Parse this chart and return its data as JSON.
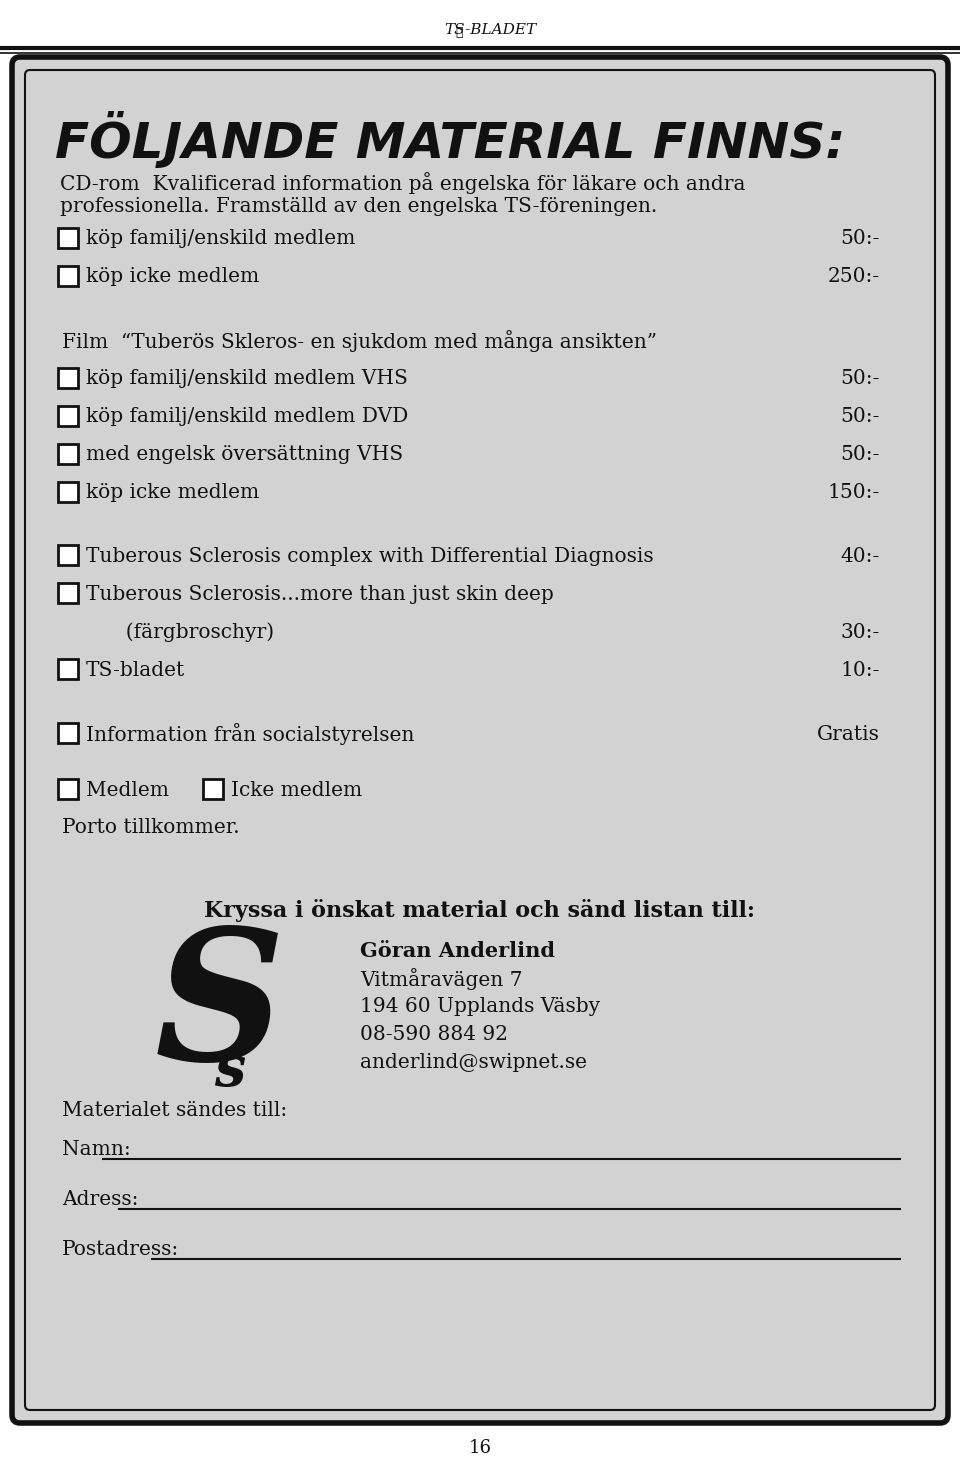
{
  "page_bg": "#ffffff",
  "box_bg": "#d2d2d2",
  "box_border": "#111111",
  "text_color": "#111111",
  "header_text": "FÖLJANDE MATERIAL FINNS:",
  "header_fontsize": 36,
  "body_fontsize": 14.5,
  "title_text": "TS-BLADET",
  "page_number": "16",
  "intro_line1": "CD-rom  Kvalificerad information på engelska för läkare och andra",
  "intro_line2": "professionella. Framställd av den engelska TS-föreningen.",
  "items": [
    {
      "checkbox": true,
      "text": "köp familj/enskild medlem",
      "price": "50:-",
      "extra_before": 0
    },
    {
      "checkbox": true,
      "text": "köp icke medlem",
      "price": "250:-",
      "extra_before": 0
    },
    {
      "checkbox": false,
      "text": "",
      "price": "",
      "extra_before": 20
    },
    {
      "checkbox": false,
      "text": "Film  “Tuberös Skleros- en sjukdom med många ansikten”",
      "price": "",
      "extra_before": 0
    },
    {
      "checkbox": true,
      "text": "köp familj/enskild medlem VHS",
      "price": "50:-",
      "extra_before": 0
    },
    {
      "checkbox": true,
      "text": "köp familj/enskild medlem DVD",
      "price": "50:-",
      "extra_before": 0
    },
    {
      "checkbox": true,
      "text": "med engelsk översättning VHS",
      "price": "50:-",
      "extra_before": 0
    },
    {
      "checkbox": true,
      "text": "köp icke medlem",
      "price": "150:-",
      "extra_before": 0
    },
    {
      "checkbox": false,
      "text": "",
      "price": "",
      "extra_before": 20
    },
    {
      "checkbox": true,
      "text": "Tuberous Sclerosis complex with Differential Diagnosis",
      "price": "40:-",
      "extra_before": 0
    },
    {
      "checkbox": true,
      "text": "Tuberous Sclerosis...more than just skin deep",
      "price": "",
      "extra_before": 0
    },
    {
      "checkbox": false,
      "text": "          (färgbroschyr)",
      "price": "30:-",
      "extra_before": 0
    },
    {
      "checkbox": true,
      "text": "TS-bladet",
      "price": "10:-",
      "extra_before": 0
    },
    {
      "checkbox": false,
      "text": "",
      "price": "",
      "extra_before": 20
    },
    {
      "checkbox": true,
      "text": "Information från socialstyrelsen",
      "price": "Gratis",
      "extra_before": 0
    }
  ],
  "kryssa_text": "Kryssa i önskat material och sänd listan till:",
  "address_name": "Göran Anderlind",
  "address_lines": [
    "Vitmåravägen 7",
    "194 60 Upplands Väsby",
    "08-590 884 92",
    "anderlind@swipnet.se"
  ],
  "materialet_text": "Materialet sändes till:",
  "namn_label": "Namn:",
  "adress_label": "Adress:",
  "postadress_label": "Postadress:"
}
